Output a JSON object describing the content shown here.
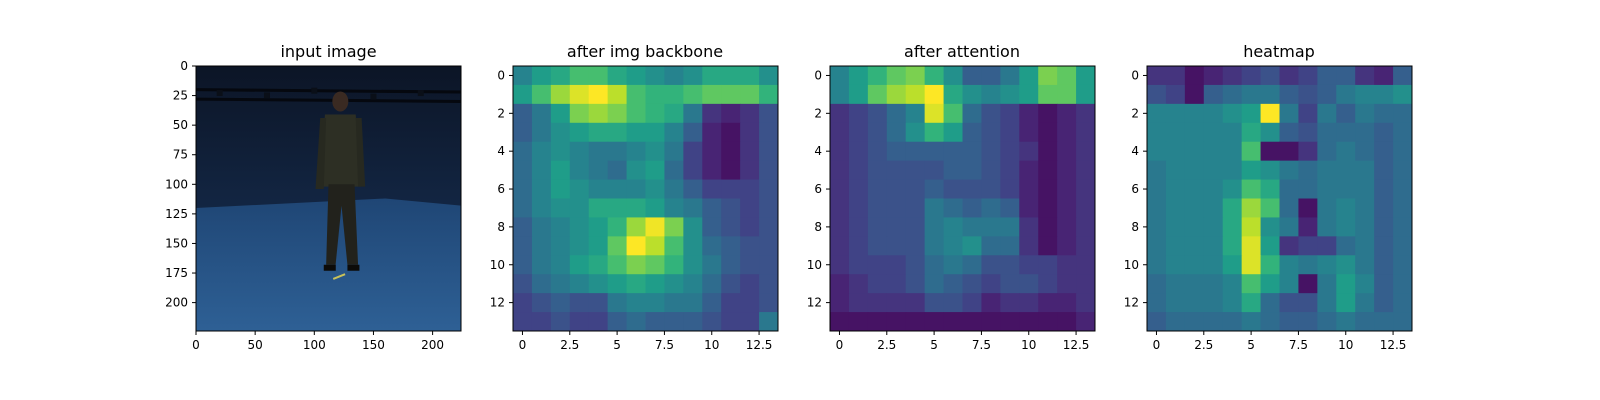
{
  "figure": {
    "titles": [
      "input image",
      "after img backbone",
      "after attention",
      "heatmap"
    ]
  },
  "chart_data": [
    {
      "type": "image",
      "title": "input image",
      "xlim": [
        0,
        224
      ],
      "ylim": [
        224,
        0
      ],
      "xticks": [
        0,
        50,
        100,
        150,
        200
      ],
      "yticks": [
        0,
        25,
        50,
        75,
        100,
        125,
        150,
        175,
        200
      ],
      "scene": "person standing in a dark blue motion-capture room, blue floor"
    },
    {
      "type": "heatmap",
      "title": "after img backbone",
      "colormap": "viridis",
      "xticks": [
        0.0,
        2.5,
        5.0,
        7.5,
        10.0,
        12.5
      ],
      "yticks": [
        0,
        2,
        4,
        6,
        8,
        10,
        12
      ],
      "values": [
        [
          0.45,
          0.55,
          0.6,
          0.7,
          0.7,
          0.6,
          0.55,
          0.5,
          0.45,
          0.5,
          0.6,
          0.6,
          0.6,
          0.5
        ],
        [
          0.55,
          0.7,
          0.85,
          0.95,
          1.0,
          0.9,
          0.7,
          0.65,
          0.65,
          0.7,
          0.75,
          0.75,
          0.75,
          0.65
        ],
        [
          0.3,
          0.4,
          0.55,
          0.8,
          0.85,
          0.8,
          0.7,
          0.65,
          0.6,
          0.4,
          0.15,
          0.1,
          0.15,
          0.25
        ],
        [
          0.3,
          0.4,
          0.5,
          0.55,
          0.6,
          0.6,
          0.55,
          0.55,
          0.45,
          0.3,
          0.1,
          0.05,
          0.15,
          0.25
        ],
        [
          0.35,
          0.45,
          0.5,
          0.45,
          0.4,
          0.4,
          0.45,
          0.5,
          0.4,
          0.2,
          0.1,
          0.05,
          0.15,
          0.25
        ],
        [
          0.35,
          0.45,
          0.55,
          0.45,
          0.4,
          0.35,
          0.5,
          0.55,
          0.35,
          0.2,
          0.1,
          0.05,
          0.15,
          0.25
        ],
        [
          0.35,
          0.45,
          0.55,
          0.5,
          0.45,
          0.45,
          0.45,
          0.5,
          0.4,
          0.3,
          0.2,
          0.2,
          0.2,
          0.25
        ],
        [
          0.35,
          0.45,
          0.5,
          0.5,
          0.6,
          0.6,
          0.6,
          0.55,
          0.45,
          0.4,
          0.3,
          0.25,
          0.2,
          0.25
        ],
        [
          0.3,
          0.4,
          0.45,
          0.5,
          0.55,
          0.65,
          0.85,
          0.98,
          0.8,
          0.5,
          0.3,
          0.25,
          0.2,
          0.25
        ],
        [
          0.3,
          0.4,
          0.45,
          0.5,
          0.55,
          0.75,
          1.0,
          0.9,
          0.7,
          0.5,
          0.35,
          0.3,
          0.25,
          0.25
        ],
        [
          0.3,
          0.4,
          0.45,
          0.55,
          0.6,
          0.7,
          0.8,
          0.75,
          0.65,
          0.5,
          0.4,
          0.3,
          0.25,
          0.25
        ],
        [
          0.25,
          0.35,
          0.4,
          0.45,
          0.5,
          0.55,
          0.6,
          0.55,
          0.5,
          0.45,
          0.35,
          0.25,
          0.2,
          0.25
        ],
        [
          0.2,
          0.25,
          0.3,
          0.25,
          0.25,
          0.4,
          0.45,
          0.45,
          0.4,
          0.4,
          0.3,
          0.2,
          0.2,
          0.25
        ],
        [
          0.2,
          0.2,
          0.25,
          0.2,
          0.2,
          0.3,
          0.35,
          0.3,
          0.3,
          0.3,
          0.25,
          0.2,
          0.2,
          0.4
        ]
      ]
    },
    {
      "type": "heatmap",
      "title": "after attention",
      "colormap": "viridis",
      "xticks": [
        0.0,
        2.5,
        5.0,
        7.5,
        10.0,
        12.5
      ],
      "yticks": [
        0,
        2,
        4,
        6,
        8,
        10,
        12
      ],
      "values": [
        [
          0.45,
          0.55,
          0.65,
          0.75,
          0.8,
          0.65,
          0.5,
          0.3,
          0.3,
          0.4,
          0.55,
          0.8,
          0.75,
          0.55
        ],
        [
          0.45,
          0.55,
          0.75,
          0.85,
          0.9,
          1.0,
          0.6,
          0.5,
          0.45,
          0.5,
          0.55,
          0.75,
          0.75,
          0.55
        ],
        [
          0.15,
          0.2,
          0.25,
          0.35,
          0.45,
          0.95,
          0.7,
          0.35,
          0.25,
          0.2,
          0.1,
          0.05,
          0.1,
          0.15
        ],
        [
          0.15,
          0.2,
          0.25,
          0.35,
          0.5,
          0.65,
          0.55,
          0.3,
          0.25,
          0.2,
          0.1,
          0.05,
          0.1,
          0.15
        ],
        [
          0.15,
          0.2,
          0.25,
          0.3,
          0.3,
          0.3,
          0.3,
          0.3,
          0.25,
          0.2,
          0.15,
          0.05,
          0.1,
          0.15
        ],
        [
          0.15,
          0.2,
          0.25,
          0.25,
          0.25,
          0.25,
          0.3,
          0.3,
          0.25,
          0.2,
          0.1,
          0.05,
          0.1,
          0.15
        ],
        [
          0.15,
          0.2,
          0.25,
          0.25,
          0.25,
          0.3,
          0.25,
          0.25,
          0.25,
          0.2,
          0.1,
          0.05,
          0.1,
          0.15
        ],
        [
          0.15,
          0.2,
          0.25,
          0.25,
          0.25,
          0.4,
          0.35,
          0.3,
          0.35,
          0.3,
          0.1,
          0.05,
          0.1,
          0.15
        ],
        [
          0.15,
          0.2,
          0.25,
          0.25,
          0.25,
          0.4,
          0.45,
          0.4,
          0.4,
          0.4,
          0.15,
          0.05,
          0.1,
          0.15
        ],
        [
          0.15,
          0.2,
          0.25,
          0.25,
          0.25,
          0.4,
          0.45,
          0.5,
          0.35,
          0.35,
          0.15,
          0.05,
          0.1,
          0.15
        ],
        [
          0.15,
          0.2,
          0.2,
          0.2,
          0.25,
          0.35,
          0.4,
          0.35,
          0.25,
          0.25,
          0.2,
          0.2,
          0.15,
          0.15
        ],
        [
          0.1,
          0.15,
          0.2,
          0.2,
          0.25,
          0.35,
          0.3,
          0.25,
          0.2,
          0.25,
          0.25,
          0.2,
          0.15,
          0.15
        ],
        [
          0.1,
          0.15,
          0.15,
          0.15,
          0.15,
          0.25,
          0.25,
          0.2,
          0.1,
          0.15,
          0.15,
          0.1,
          0.1,
          0.15
        ],
        [
          0.05,
          0.05,
          0.05,
          0.05,
          0.05,
          0.05,
          0.05,
          0.05,
          0.05,
          0.05,
          0.05,
          0.05,
          0.05,
          0.1
        ]
      ]
    },
    {
      "type": "heatmap",
      "title": "heatmap",
      "colormap": "viridis",
      "xticks": [
        0.0,
        2.5,
        5.0,
        7.5,
        10.0,
        12.5
      ],
      "yticks": [
        0,
        2,
        4,
        6,
        8,
        10,
        12
      ],
      "values": [
        [
          0.15,
          0.15,
          0.05,
          0.1,
          0.15,
          0.2,
          0.25,
          0.15,
          0.2,
          0.3,
          0.3,
          0.15,
          0.1,
          0.3
        ],
        [
          0.25,
          0.2,
          0.05,
          0.3,
          0.35,
          0.4,
          0.4,
          0.3,
          0.25,
          0.3,
          0.4,
          0.45,
          0.45,
          0.5
        ],
        [
          0.45,
          0.45,
          0.45,
          0.45,
          0.5,
          0.55,
          1.0,
          0.4,
          0.2,
          0.4,
          0.3,
          0.4,
          0.35,
          0.35
        ],
        [
          0.45,
          0.45,
          0.45,
          0.45,
          0.45,
          0.6,
          0.5,
          0.3,
          0.25,
          0.35,
          0.35,
          0.35,
          0.3,
          0.35
        ],
        [
          0.45,
          0.45,
          0.45,
          0.45,
          0.45,
          0.7,
          0.05,
          0.05,
          0.15,
          0.35,
          0.4,
          0.35,
          0.3,
          0.35
        ],
        [
          0.4,
          0.45,
          0.45,
          0.45,
          0.45,
          0.55,
          0.5,
          0.4,
          0.35,
          0.4,
          0.4,
          0.4,
          0.3,
          0.35
        ],
        [
          0.4,
          0.45,
          0.45,
          0.45,
          0.5,
          0.7,
          0.6,
          0.35,
          0.35,
          0.4,
          0.4,
          0.4,
          0.3,
          0.35
        ],
        [
          0.4,
          0.45,
          0.45,
          0.45,
          0.6,
          0.85,
          0.7,
          0.35,
          0.05,
          0.4,
          0.45,
          0.4,
          0.3,
          0.35
        ],
        [
          0.4,
          0.45,
          0.45,
          0.45,
          0.6,
          0.9,
          0.5,
          0.4,
          0.1,
          0.4,
          0.45,
          0.4,
          0.3,
          0.35
        ],
        [
          0.4,
          0.45,
          0.45,
          0.45,
          0.6,
          0.95,
          0.55,
          0.15,
          0.2,
          0.2,
          0.35,
          0.4,
          0.3,
          0.35
        ],
        [
          0.4,
          0.45,
          0.45,
          0.45,
          0.55,
          0.95,
          0.65,
          0.45,
          0.4,
          0.45,
          0.5,
          0.4,
          0.3,
          0.35
        ],
        [
          0.35,
          0.4,
          0.4,
          0.4,
          0.45,
          0.7,
          0.55,
          0.45,
          0.05,
          0.4,
          0.55,
          0.45,
          0.3,
          0.35
        ],
        [
          0.35,
          0.4,
          0.4,
          0.4,
          0.45,
          0.6,
          0.35,
          0.25,
          0.25,
          0.4,
          0.55,
          0.4,
          0.3,
          0.35
        ],
        [
          0.3,
          0.35,
          0.35,
          0.35,
          0.35,
          0.4,
          0.35,
          0.3,
          0.3,
          0.35,
          0.4,
          0.35,
          0.35,
          0.35
        ]
      ]
    }
  ]
}
